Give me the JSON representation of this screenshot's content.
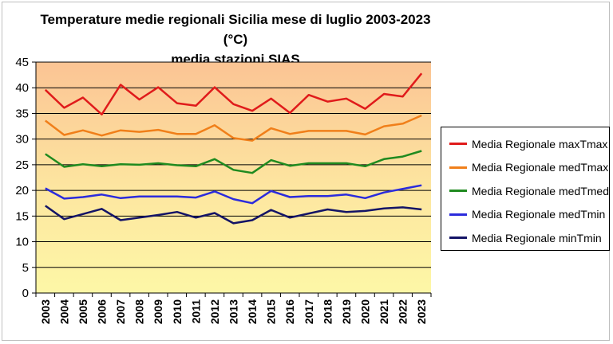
{
  "chart_data": {
    "type": "line",
    "title": "Temperature medie regionali Sicilia mese di luglio 2003-2023 (°C)",
    "subtitle": "media stazioni SIAS",
    "xlabel": "",
    "ylabel": "",
    "ylim": [
      0,
      45
    ],
    "yticks": [
      "0",
      "5",
      "10",
      "15",
      "20",
      "25",
      "30",
      "35",
      "40",
      "45"
    ],
    "grid": true,
    "legend_position": "right",
    "background": "vertical gradient from yellow (bottom) to light orange (top)",
    "x": [
      "2003",
      "2004",
      "2005",
      "2006",
      "2007",
      "2008",
      "2009",
      "2010",
      "2011",
      "2012",
      "2013",
      "2014",
      "2015",
      "2016",
      "2017",
      "2018",
      "2019",
      "2020",
      "2021",
      "2022",
      "2023"
    ],
    "series": [
      {
        "name": "Media Regionale maxTmax",
        "color": "#e01b1b",
        "values": [
          39.6,
          36.1,
          38.1,
          34.8,
          40.6,
          37.7,
          40.1,
          37.0,
          36.5,
          40.1,
          36.8,
          35.5,
          37.9,
          35.1,
          38.6,
          37.3,
          37.9,
          35.9,
          38.8,
          38.3,
          42.8
        ]
      },
      {
        "name": "Media Regionale medTmax",
        "color": "#f07f1a",
        "values": [
          33.6,
          30.8,
          31.7,
          30.7,
          31.7,
          31.4,
          31.8,
          31.0,
          31.0,
          32.7,
          30.2,
          29.7,
          32.1,
          31.0,
          31.6,
          31.6,
          31.6,
          30.9,
          32.5,
          33.0,
          34.6
        ]
      },
      {
        "name": "Media Regionale medTmed",
        "color": "#1f8a1f",
        "values": [
          27.1,
          24.6,
          25.1,
          24.7,
          25.1,
          25.0,
          25.3,
          24.9,
          24.7,
          26.1,
          24.0,
          23.4,
          25.9,
          24.8,
          25.3,
          25.3,
          25.3,
          24.7,
          26.1,
          26.6,
          27.7
        ]
      },
      {
        "name": "Media Regionale medTmin",
        "color": "#2b2bdc",
        "values": [
          20.4,
          18.4,
          18.7,
          19.2,
          18.5,
          18.8,
          18.8,
          18.8,
          18.6,
          19.8,
          18.3,
          17.5,
          19.9,
          18.7,
          18.9,
          18.9,
          19.2,
          18.5,
          19.6,
          20.3,
          21.0
        ]
      },
      {
        "name": "Media Regionale minTmin",
        "color": "#141466",
        "values": [
          17.0,
          14.4,
          15.4,
          16.4,
          14.2,
          14.7,
          15.2,
          15.8,
          14.7,
          15.6,
          13.6,
          14.2,
          16.2,
          14.7,
          15.5,
          16.3,
          15.8,
          16.0,
          16.5,
          16.7,
          16.3
        ]
      }
    ]
  }
}
